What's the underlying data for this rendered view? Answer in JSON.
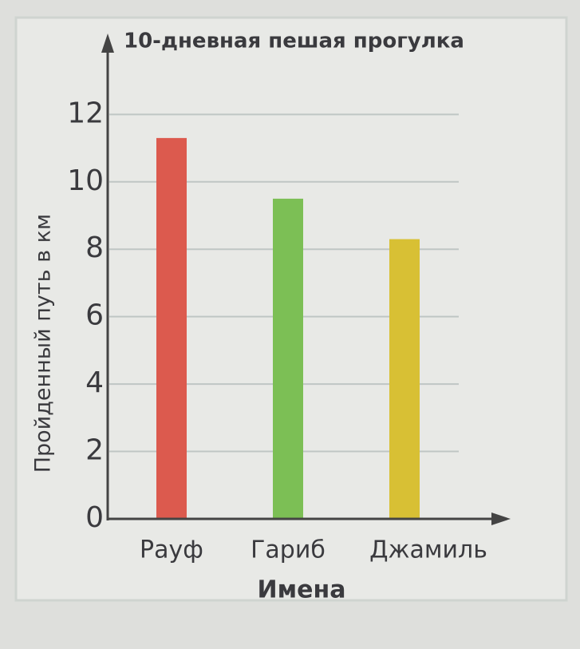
{
  "chart_data": {
    "type": "bar",
    "title": "10-дневная пешая прогулка",
    "x_label": "Имена",
    "y_label": "Пройденный путь в км",
    "categories": [
      "Рауф",
      "Гариб",
      "Джамиль"
    ],
    "values": [
      11.3,
      9.5,
      8.3
    ],
    "colors": [
      "#dc5a4e",
      "#7cbf55",
      "#d8c034"
    ],
    "ylim": [
      0,
      13.5
    ],
    "yticks": [
      0,
      2,
      4,
      6,
      8,
      10,
      12
    ],
    "grid": true
  }
}
